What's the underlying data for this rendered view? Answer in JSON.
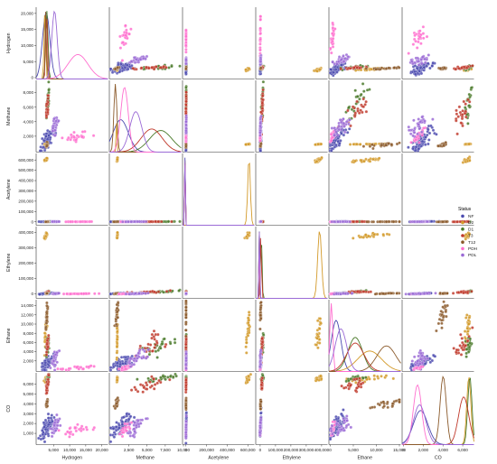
{
  "chart_data": {
    "type": "scatter",
    "kind": "pairplot",
    "variables": [
      "Hydrogen",
      "Methane",
      "Acetylene",
      "Ethylene",
      "Ethane",
      "CO"
    ],
    "axis_ranges": {
      "Hydrogen": [
        0,
        21500
      ],
      "Methane": [
        0,
        9500
      ],
      "Acetylene": [
        -20000,
        650000
      ],
      "Ethylene": [
        -20000,
        430000
      ],
      "Ethane": [
        0,
        15000
      ],
      "CO": [
        0,
        7000
      ]
    },
    "x_ticks": {
      "Hydrogen": [
        5000,
        10000,
        15000,
        20000
      ],
      "Methane": [
        2500,
        5000,
        7500,
        10000
      ],
      "Acetylene": [
        0,
        200000,
        400000,
        600000
      ],
      "Ethylene": [
        0,
        100000,
        200000,
        300000,
        400000
      ],
      "Ethane": [
        0,
        5000,
        10000,
        15000
      ],
      "CO": [
        0,
        2000,
        4000,
        6000
      ]
    },
    "x_tick_labels": {
      "Hydrogen": [
        "5,000",
        "10,000",
        "15,000",
        "20,000"
      ],
      "Methane": [
        "2,500",
        "5,000",
        "7,500",
        "10,000"
      ],
      "Acetylene": [
        "0",
        "200,000",
        "400,000",
        "600,000"
      ],
      "Ethylene": [
        "0",
        "100,000",
        "200,000",
        "300,000",
        "400,000"
      ],
      "Ethane": [
        "0",
        "5,000",
        "10,000",
        "15,000"
      ],
      "CO": [
        "0",
        "2,000",
        "4,000",
        "6,000"
      ]
    },
    "y_ticks": {
      "Hydrogen": [
        0,
        5000,
        10000,
        15000,
        20000
      ],
      "Methane": [
        2000,
        4000,
        6000,
        8000
      ],
      "Acetylene": [
        0,
        100000,
        200000,
        300000,
        400000,
        500000,
        600000
      ],
      "Ethylene": [
        0,
        100000,
        200000,
        300000,
        400000
      ],
      "Ethane": [
        2000,
        4000,
        6000,
        8000,
        10000,
        12000,
        14000
      ],
      "CO": [
        1000,
        2000,
        3000,
        4000,
        5000,
        6000
      ]
    },
    "y_tick_labels": {
      "Hydrogen": [
        "0",
        "5,000",
        "10,000",
        "15,000",
        "20,000"
      ],
      "Methane": [
        "2,000",
        "4,000",
        "6,000",
        "8,000"
      ],
      "Acetylene": [
        "0",
        "100,000",
        "200,000",
        "300,000",
        "400,000",
        "500,000",
        "600,000"
      ],
      "Ethylene": [
        "0",
        "100,000",
        "200,000",
        "300,000",
        "400,000"
      ],
      "Ethane": [
        "2,000",
        "4,000",
        "6,000",
        "8,000",
        "10,000",
        "12,000",
        "14,000"
      ],
      "CO": [
        "1,000",
        "2,000",
        "3,000",
        "4,000",
        "5,000",
        "6,000"
      ]
    },
    "legend": {
      "title": "Status",
      "position": "right",
      "entries": [
        {
          "label": "NF",
          "color": "#4c4bb0"
        },
        {
          "label": "D2",
          "color": "#d39a2a"
        },
        {
          "label": "D1",
          "color": "#4a7a2a"
        },
        {
          "label": "T3",
          "color": "#c0392b"
        },
        {
          "label": "T12",
          "color": "#8b5a2b"
        },
        {
          "label": "PDH",
          "color": "#ff6fcf"
        },
        {
          "label": "PDL",
          "color": "#9b6bd6"
        }
      ]
    },
    "clusters": [
      {
        "status": "NF",
        "x": {
          "Hydrogen": 3000,
          "Methane": 1500,
          "Acetylene": 2000,
          "Ethylene": 3000,
          "Ethane": 1500,
          "CO": 1800
        },
        "spread": {
          "Hydrogen": 1100,
          "Methane": 1000,
          "Acetylene": 1500,
          "Ethylene": 2500,
          "Ethane": 1000,
          "CO": 700
        }
      },
      {
        "status": "D2",
        "x": {
          "Hydrogen": 2600,
          "Methane": 900,
          "Acetylene": 600000,
          "Ethylene": 380000,
          "Ethane": 8500,
          "CO": 6500
        },
        "spread": {
          "Hydrogen": 250,
          "Methane": 30,
          "Acetylene": 12000,
          "Ethylene": 12000,
          "Ethane": 2500,
          "CO": 200
        }
      },
      {
        "status": "D1",
        "x": {
          "Hydrogen": 3200,
          "Methane": 6800,
          "Acetylene": 1500,
          "Ethylene": 14000,
          "Ethane": 5500,
          "CO": 6600
        },
        "spread": {
          "Hydrogen": 350,
          "Methane": 1500,
          "Acetylene": 1000,
          "Ethylene": 5000,
          "Ethane": 1500,
          "CO": 200
        }
      },
      {
        "status": "T3",
        "x": {
          "Hydrogen": 3100,
          "Methane": 5600,
          "Acetylene": 1200,
          "Ethylene": 12000,
          "Ethane": 5500,
          "CO": 6000
        },
        "spread": {
          "Hydrogen": 250,
          "Methane": 1400,
          "Acetylene": 900,
          "Ethylene": 4000,
          "Ethane": 1800,
          "CO": 500
        }
      },
      {
        "status": "T12",
        "x": {
          "Hydrogen": 2900,
          "Methane": 800,
          "Acetylene": 1000,
          "Ethylene": 3000,
          "Ethane": 12000,
          "CO": 4000
        },
        "spread": {
          "Hydrogen": 200,
          "Methane": 200,
          "Acetylene": 800,
          "Ethylene": 2000,
          "Ethane": 2000,
          "CO": 300
        }
      },
      {
        "status": "PDH",
        "x": {
          "Hydrogen": 12500,
          "Methane": 2000,
          "Acetylene": 1000,
          "Ethylene": 1000,
          "Ethane": 500,
          "CO": 1500
        },
        "spread": {
          "Hydrogen": 3000,
          "Methane": 500,
          "Acetylene": 500,
          "Ethylene": 1000,
          "Ethane": 300,
          "CO": 400
        }
      },
      {
        "status": "PDL",
        "x": {
          "Hydrogen": 5500,
          "Methane": 3500,
          "Acetylene": 1500,
          "Ethylene": 2000,
          "Ethane": 2500,
          "CO": 1700
        },
        "spread": {
          "Hydrogen": 800,
          "Methane": 800,
          "Acetylene": 900,
          "Ethylene": 2000,
          "Ethane": 1200,
          "CO": 600
        }
      }
    ]
  }
}
